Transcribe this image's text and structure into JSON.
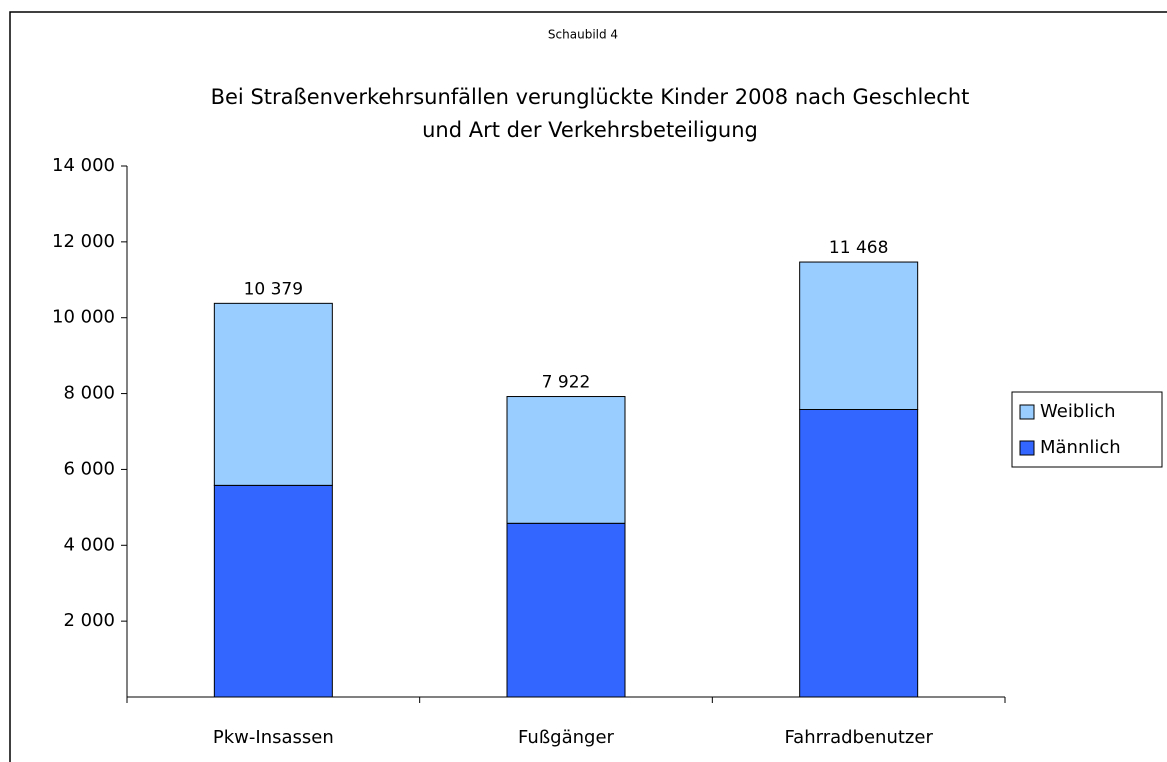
{
  "chart_data": {
    "type": "stacked_bar",
    "figure_label": "Schaubild 4",
    "title_lines": [
      "Bei Straßenverkehrsunfällen verunglückte Kinder 2008 nach Geschlecht",
      "und Art der Verkehrsbeteiligung"
    ],
    "categories": [
      "Pkw-Insassen",
      "Fußgänger",
      "Fahrradbenutzer"
    ],
    "series": [
      {
        "name": "Männlich",
        "color": "#3366ff",
        "values": [
          5580,
          4580,
          7580
        ]
      },
      {
        "name": "Weiblich",
        "color": "#99ccff",
        "values": [
          4799,
          3342,
          3888
        ]
      }
    ],
    "totals": [
      10379,
      7922,
      11468
    ],
    "total_labels": [
      "10 379",
      "7 922",
      "11 468"
    ],
    "ylim": [
      0,
      14000
    ],
    "yticks": [
      {
        "value": 2000,
        "label": "2 000"
      },
      {
        "value": 4000,
        "label": "4 000"
      },
      {
        "value": 6000,
        "label": "6 000"
      },
      {
        "value": 8000,
        "label": "8 000"
      },
      {
        "value": 10000,
        "label": "10 000"
      },
      {
        "value": 12000,
        "label": "12 000"
      },
      {
        "value": 14000,
        "label": "14 000"
      }
    ],
    "legend": "right"
  }
}
